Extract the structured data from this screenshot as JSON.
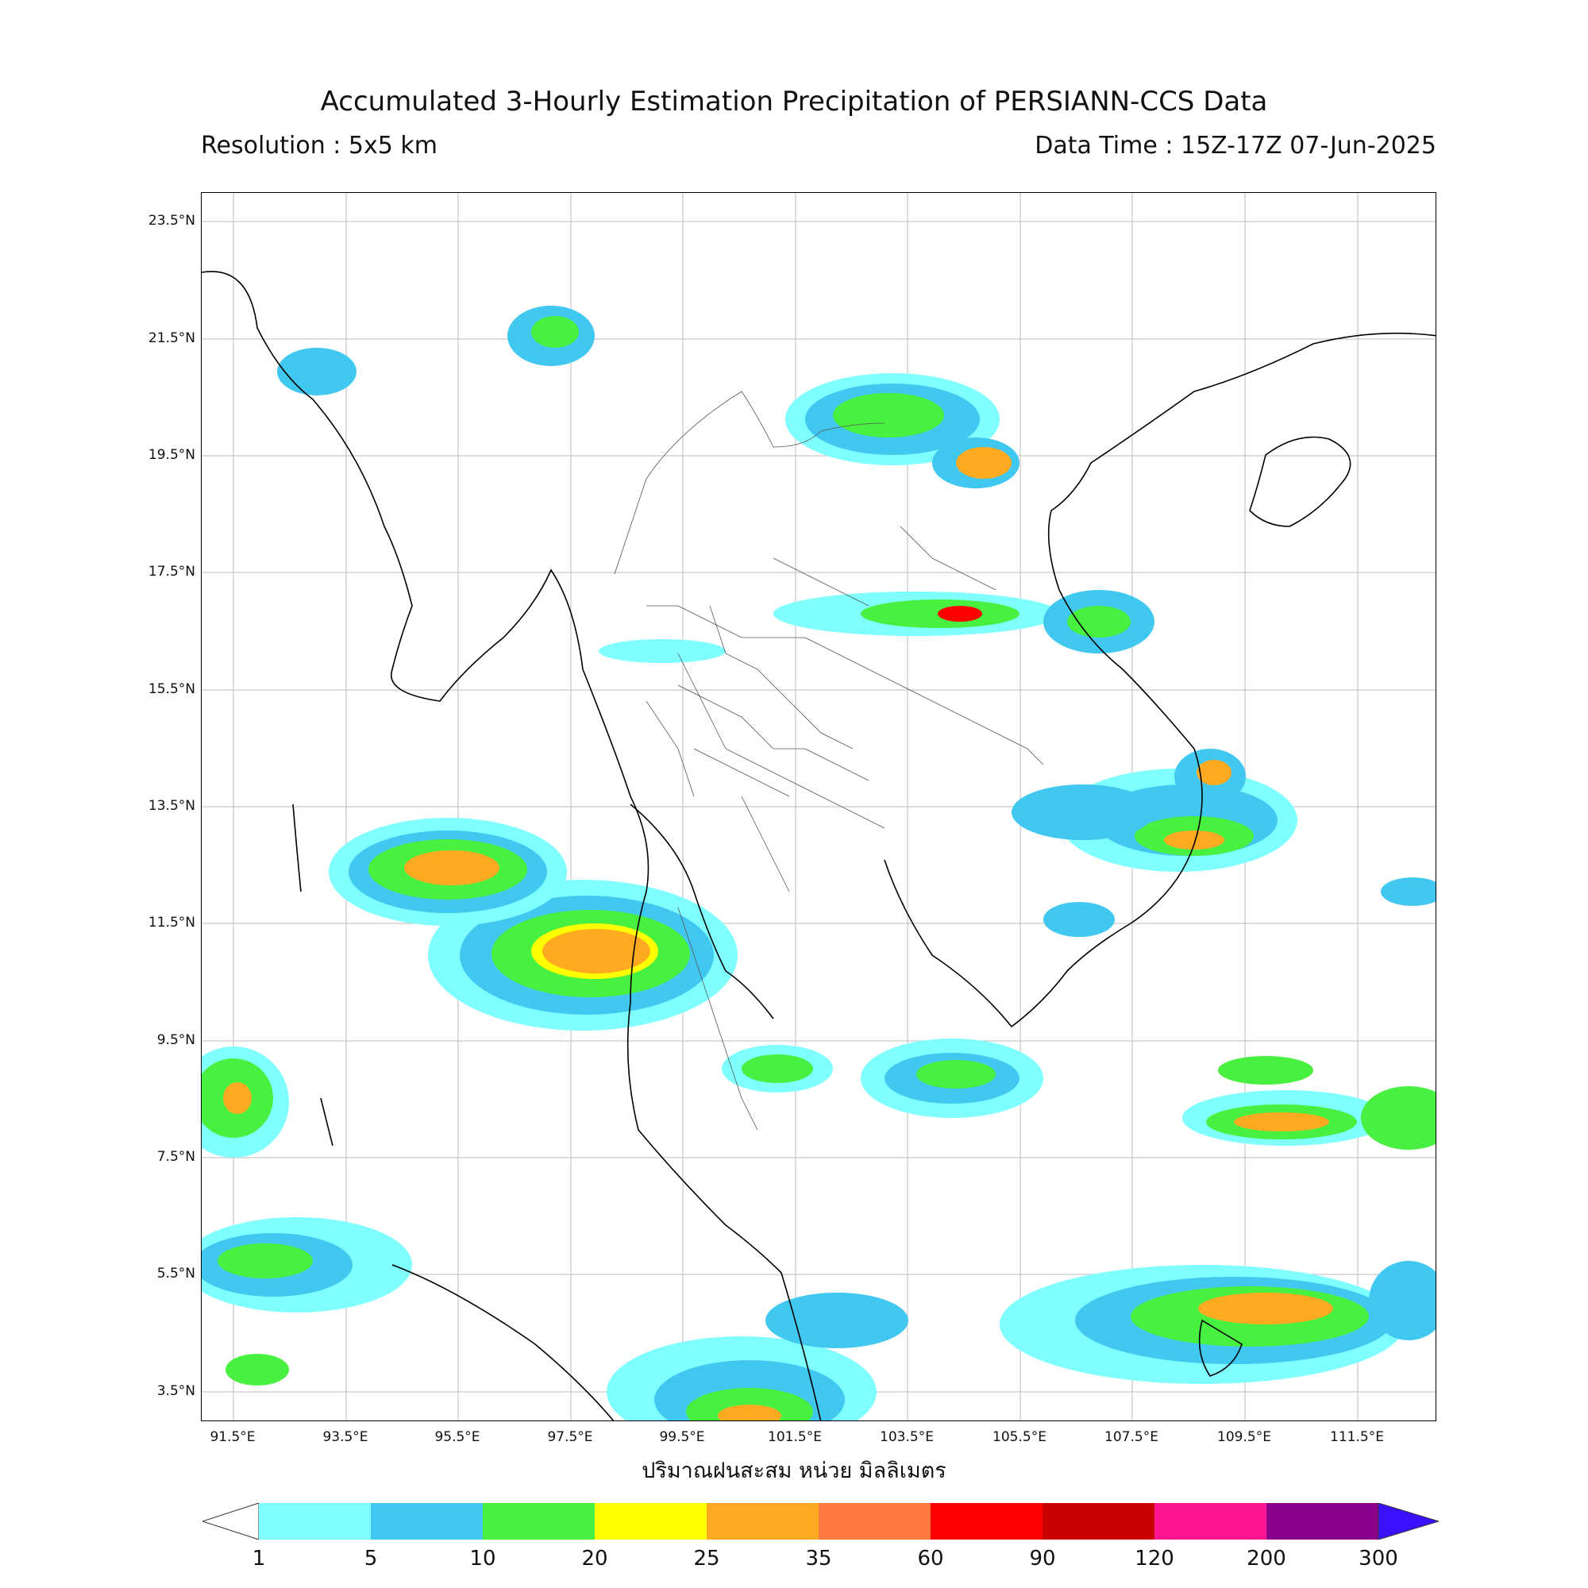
{
  "header": {
    "title": "Accumulated 3-Hourly Estimation Precipitation of PERSIANN-CCS Data",
    "resolution": "Resolution : 5x5 km",
    "data_time": "Data Time : 15Z-17Z 07-Jun-2025"
  },
  "axes": {
    "lat_labels": [
      "23.5°N",
      "21.5°N",
      "19.5°N",
      "17.5°N",
      "15.5°N",
      "13.5°N",
      "11.5°N",
      "9.5°N",
      "7.5°N",
      "5.5°N",
      "3.5°N"
    ],
    "lon_labels": [
      "91.5°E",
      "93.5°E",
      "95.5°E",
      "97.5°E",
      "99.5°E",
      "101.5°E",
      "103.5°E",
      "105.5°E",
      "107.5°E",
      "109.5°E",
      "111.5°E"
    ],
    "x_title": "ปริมาณฝนสะสม หน่วย มิลลิเมตร"
  },
  "legend": {
    "levels": [
      "1",
      "5",
      "10",
      "20",
      "25",
      "35",
      "60",
      "90",
      "120",
      "200",
      "300"
    ],
    "colors": [
      "#7fffff",
      "#40c8f0",
      "#48f040",
      "#ffff00",
      "#ffaa20",
      "#ff7840",
      "#ff0000",
      "#c80000",
      "#ff1493",
      "#8b008b",
      "#3a10ff"
    ]
  },
  "colors": {
    "rain_1": "#7fffff",
    "rain_5": "#40c8f0",
    "rain_10": "#48f040",
    "rain_20": "#ffff00",
    "rain_25": "#ffaa20",
    "rain_35": "#ff7840",
    "rain_60": "#ff0000"
  }
}
